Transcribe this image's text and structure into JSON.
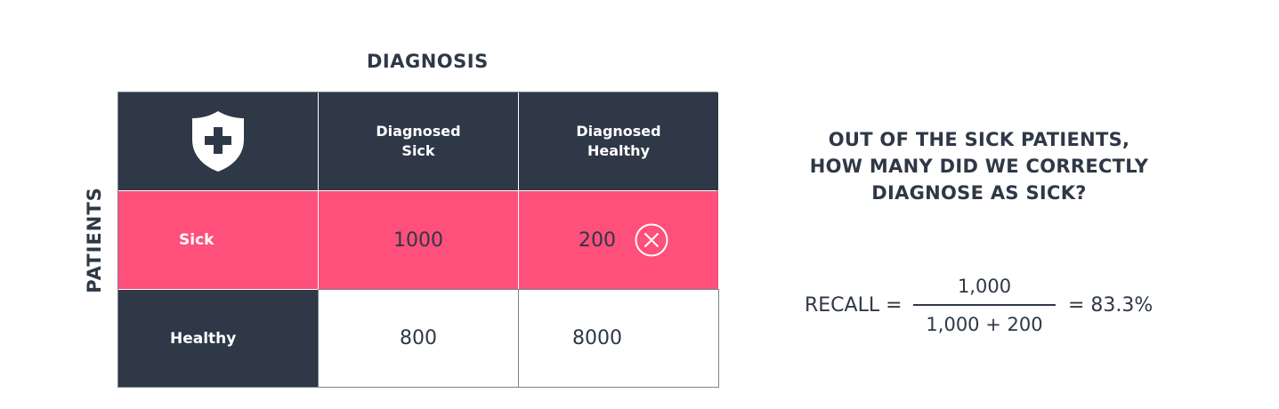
{
  "column_header": "DIAGNOSIS",
  "row_header": "PATIENTS",
  "matrix": {
    "corner_icon": "shield-plus-icon",
    "columns": [
      "Diagnosed\nSick",
      "Diagnosed\nHealthy"
    ],
    "rows": [
      {
        "label": "Sick",
        "values": [
          "1000",
          "200"
        ]
      },
      {
        "label": "Healthy",
        "values": [
          "800",
          "8000"
        ]
      }
    ],
    "marker_icon": "circle-x-icon"
  },
  "question": {
    "lines": [
      "OUT OF THE SICK PATIENTS,",
      "HOW MANY DID WE CORRECTLY",
      "DIAGNOSE AS SICK?"
    ]
  },
  "formula": {
    "label": "RECALL =",
    "numerator": "1,000",
    "denominator": "1,000 + 200",
    "result": "= 83.3%"
  },
  "colors": {
    "dark": "#2e3846",
    "highlight": "#ff4f7b",
    "grid": "#7a828c"
  }
}
